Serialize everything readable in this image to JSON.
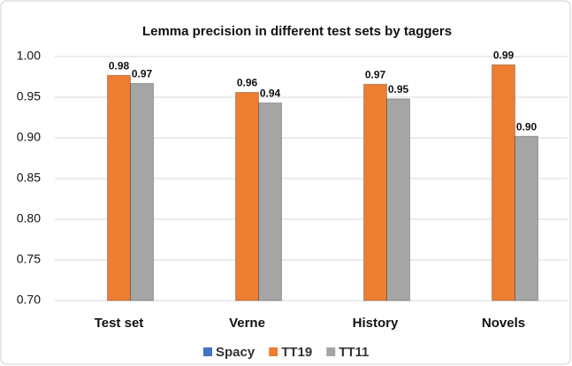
{
  "chart_data": {
    "type": "bar",
    "title": "Lemma precision in different test sets by taggers",
    "categories": [
      "Test set",
      "Verne",
      "History",
      "Novels"
    ],
    "series": [
      {
        "name": "Spacy",
        "color": "#4472c4",
        "values": [
          null,
          null,
          null,
          null
        ]
      },
      {
        "name": "TT19",
        "color": "#ed7d31",
        "values": [
          0.977,
          0.956,
          0.966,
          0.99
        ],
        "value_labels": [
          "0.98",
          "0.96",
          "0.97",
          "0.99"
        ]
      },
      {
        "name": "TT11",
        "color": "#a5a5a5",
        "values": [
          0.967,
          0.943,
          0.948,
          0.902
        ],
        "value_labels": [
          "0.97",
          "0.94",
          "0.95",
          "0.90"
        ]
      }
    ],
    "ylim": [
      0.7,
      1.0
    ],
    "yticks": [
      {
        "value": 0.7,
        "label": "0.70"
      },
      {
        "value": 0.75,
        "label": "0.75"
      },
      {
        "value": 0.8,
        "label": "0.80"
      },
      {
        "value": 0.85,
        "label": "0.85"
      },
      {
        "value": 0.9,
        "label": "0.90"
      },
      {
        "value": 0.95,
        "label": "0.95"
      },
      {
        "value": 1.0,
        "label": "1.00"
      }
    ],
    "grid": true,
    "legend": "bottom"
  }
}
